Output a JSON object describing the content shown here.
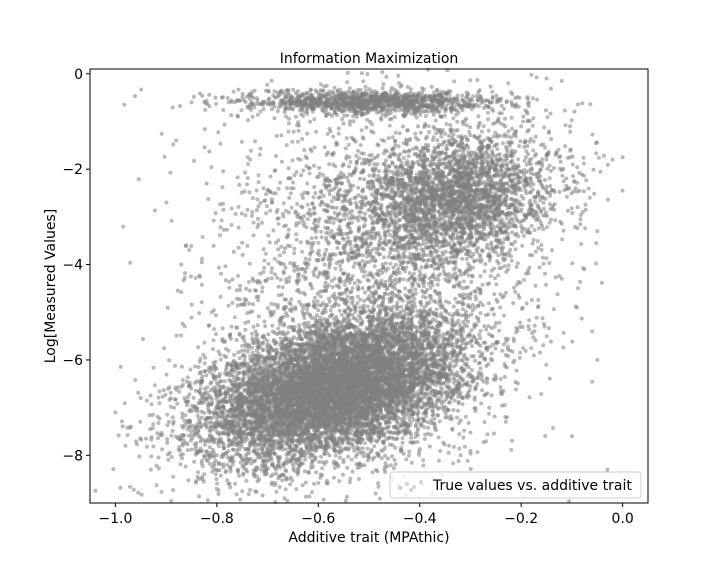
{
  "chart_data": {
    "type": "scatter",
    "title": "Information Maximization",
    "xlabel": "Additive trait (MPAthic)",
    "ylabel": "Log[Measured Values]",
    "xlim": [
      -1.05,
      0.05
    ],
    "ylim": [
      -9.0,
      0.1
    ],
    "xticks": [
      -1.0,
      -0.8,
      -0.6,
      -0.4,
      -0.2,
      0.0
    ],
    "xtick_labels": [
      "−1.0",
      "−0.8",
      "−0.6",
      "−0.4",
      "−0.2",
      "0.0"
    ],
    "yticks": [
      0,
      -2,
      -4,
      -6,
      -8
    ],
    "ytick_labels": [
      "0",
      "−2",
      "−4",
      "−6",
      "−8"
    ],
    "grid": false,
    "legend_position": "lower right",
    "marker_color": "#808080",
    "marker_alpha": 0.55,
    "series": [
      {
        "name": "True values vs. additive trait",
        "clusters": [
          {
            "label": "main",
            "n": 9000,
            "x_mean": -0.57,
            "y_mean": -6.6,
            "x_sd": 0.13,
            "y_sd": 0.75,
            "corr": 0.42
          },
          {
            "label": "upper-right",
            "n": 3000,
            "x_mean": -0.33,
            "y_mean": -2.6,
            "x_sd": 0.1,
            "y_sd": 0.7,
            "corr": 0.2
          },
          {
            "label": "top-band",
            "n": 1200,
            "x_mean": -0.5,
            "y_mean": -0.6,
            "x_sd": 0.13,
            "y_sd": 0.13,
            "corr": 0.0
          },
          {
            "label": "diffuse",
            "n": 2500,
            "x_mean": -0.5,
            "y_mean": -4.3,
            "x_sd": 0.16,
            "y_sd": 1.9,
            "corr": 0.1
          }
        ],
        "outliers": [
          {
            "x": -1.0,
            "y": -7.1
          },
          {
            "x": -0.98,
            "y": -7.8
          },
          {
            "x": -0.95,
            "y": -6.8
          },
          {
            "x": -0.05,
            "y": -3.3
          },
          {
            "x": 0.0,
            "y": -1.75
          },
          {
            "x": -0.02,
            "y": -1.8
          },
          {
            "x": 0.0,
            "y": -2.45
          },
          {
            "x": -0.03,
            "y": -8.3
          },
          {
            "x": -0.1,
            "y": -7.6
          },
          {
            "x": -0.05,
            "y": -6.0
          },
          {
            "x": -0.12,
            "y": -0.15
          },
          {
            "x": -0.88,
            "y": -1.4
          },
          {
            "x": -0.82,
            "y": -2.3
          },
          {
            "x": -0.86,
            "y": -3.6
          },
          {
            "x": -0.87,
            "y": -4.0
          },
          {
            "x": -0.8,
            "y": -8.7
          },
          {
            "x": -0.75,
            "y": -8.75
          },
          {
            "x": -0.93,
            "y": -8.3
          },
          {
            "x": -0.85,
            "y": -0.6
          },
          {
            "x": -0.79,
            "y": -0.5
          },
          {
            "x": -0.15,
            "y": -0.1
          },
          {
            "x": -0.12,
            "y": -4.3
          },
          {
            "x": -0.09,
            "y": -4.9
          },
          {
            "x": -0.06,
            "y": -5.4
          }
        ]
      }
    ]
  }
}
